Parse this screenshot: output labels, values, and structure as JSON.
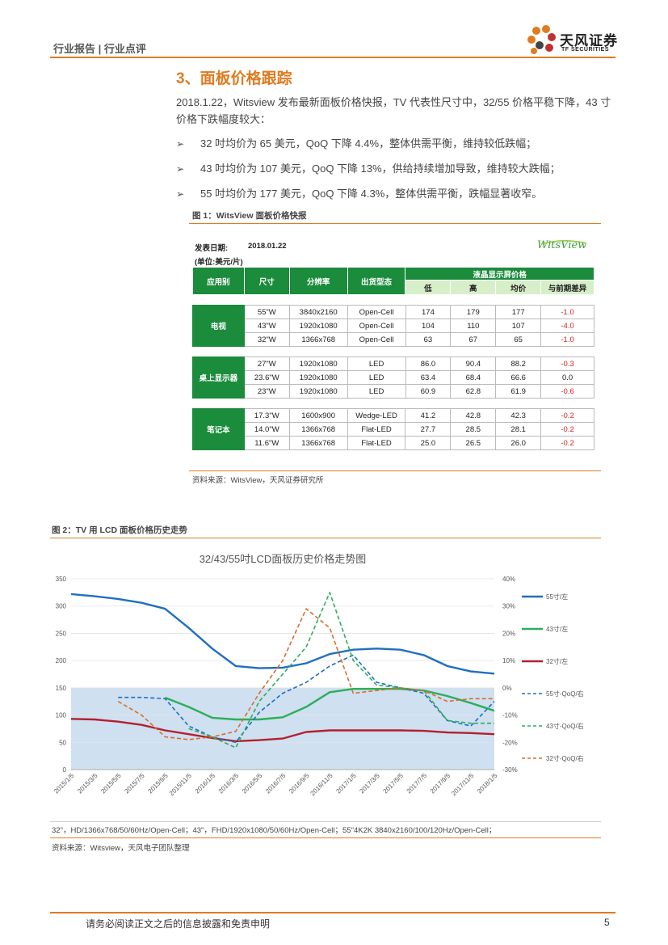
{
  "header": {
    "left": "行业报告 | 行业点评",
    "logo_cn": "天风证券",
    "logo_en": "TF SECURITIES"
  },
  "section_title": "3、面板价格跟踪",
  "intro": "2018.1.22，Witsview 发布最新面板价格快报，TV 代表性尺寸中，32/55 价格平稳下降，43 寸价格下跌幅度较大：",
  "bullets": [
    "32 吋均价为 65 美元，QoQ 下降 4.4%，整体供需平衡，维持较低跌幅；",
    "43 吋均价为 107 美元，QoQ 下降 13%，供给持续增加导致，维持较大跌幅；",
    "55 吋均价为 177 美元，QoQ 下降 4.3%，整体供需平衡，跌幅显著收窄。"
  ],
  "fig1": {
    "caption": "图 1：WitsView 面板价格快报",
    "date_label": "发表日期:",
    "date_value": "2018.01.22",
    "unit": "(单位:美元/片)",
    "brand": "WitsView",
    "headers": [
      "应用别",
      "尺寸",
      "分辨率",
      "出货型态",
      "液晶显示屏价格"
    ],
    "subheaders": [
      "低",
      "高",
      "均价",
      "与前期差异"
    ],
    "groups": [
      {
        "name": "电视",
        "rows": [
          [
            "55\"W",
            "3840x2160",
            "Open-Cell",
            "174",
            "179",
            "177",
            "-1.0"
          ],
          [
            "43\"W",
            "1920x1080",
            "Open-Cell",
            "104",
            "110",
            "107",
            "-4.0"
          ],
          [
            "32\"W",
            "1366x768",
            "Open-Cell",
            "63",
            "67",
            "65",
            "-1.0"
          ]
        ]
      },
      {
        "name": "桌上显示器",
        "rows": [
          [
            "27\"W",
            "1920x1080",
            "LED",
            "86.0",
            "90.4",
            "88.2",
            "-0.3"
          ],
          [
            "23.6\"W",
            "1920x1080",
            "LED",
            "63.4",
            "68.4",
            "66.6",
            "0.0"
          ],
          [
            "23\"W",
            "1920x1080",
            "LED",
            "60.9",
            "62.8",
            "61.9",
            "-0.6"
          ]
        ]
      },
      {
        "name": "笔记本",
        "rows": [
          [
            "17.3\"W",
            "1600x900",
            "Wedge-LED",
            "41.2",
            "42.8",
            "42.3",
            "-0.2"
          ],
          [
            "14.0\"W",
            "1366x768",
            "Flat-LED",
            "27.7",
            "28.5",
            "28.1",
            "-0.2"
          ],
          [
            "11.6\"W",
            "1366x768",
            "Flat-LED",
            "25.0",
            "26.5",
            "26.0",
            "-0.2"
          ]
        ]
      }
    ],
    "source": "资料来源：WitsView，天风证券研究所"
  },
  "fig2": {
    "caption": "图 2：TV 用 LCD 面板价格历史走势",
    "note": "32\"，HD/1366x768/50/60Hz/Open-Cell；43\"，FHD/1920x1080/50/60Hz/Open-Cell；55\"4K2K   3840x2160/100/120Hz/Open-Cell；",
    "source": "资料来源：Witsview，天风电子团队整理"
  },
  "chart_data": {
    "type": "line",
    "title": "32/43/55吋LCD面板历史价格走势图",
    "x": [
      "2015/1/5",
      "2015/3/5",
      "2015/5/5",
      "2015/7/5",
      "2015/9/5",
      "2015/11/5",
      "2016/1/5",
      "2016/3/5",
      "2016/5/5",
      "2016/7/5",
      "2016/9/5",
      "2016/11/5",
      "2017/1/5",
      "2017/3/5",
      "2017/5/5",
      "2017/7/5",
      "2017/9/5",
      "2017/11/5",
      "2018/1/5"
    ],
    "ylim_left": [
      0,
      350
    ],
    "yticks_left": [
      "0",
      "50",
      "100",
      "150",
      "200",
      "250",
      "300",
      "350"
    ],
    "ylim_right": [
      -30,
      40
    ],
    "yticks_right": [
      "-30%",
      "-20%",
      "-10%",
      "0%",
      "10%",
      "20%",
      "30%",
      "40%"
    ],
    "highlight_band": [
      0,
      150
    ],
    "series": [
      {
        "name": "55寸/左",
        "axis": "left",
        "color": "#1f6fc1",
        "dash": false,
        "values": [
          322,
          318,
          313,
          306,
          295,
          260,
          222,
          190,
          186,
          187,
          195,
          212,
          220,
          222,
          220,
          210,
          190,
          180,
          176
        ]
      },
      {
        "name": "43寸/左",
        "axis": "left",
        "color": "#2cae5a",
        "dash": false,
        "values": [
          null,
          null,
          null,
          null,
          132,
          115,
          95,
          92,
          92,
          96,
          115,
          142,
          148,
          148,
          148,
          145,
          135,
          122,
          108
        ]
      },
      {
        "name": "32寸/左",
        "axis": "left",
        "color": "#b3202e",
        "dash": false,
        "values": [
          93,
          92,
          88,
          82,
          72,
          65,
          58,
          52,
          54,
          57,
          69,
          72,
          72,
          72,
          72,
          71,
          68,
          67,
          65
        ]
      },
      {
        "name": "55寸-QoQ/右",
        "axis": "right",
        "color": "#1f6fc1",
        "dash": true,
        "values": [
          null,
          null,
          -3.5,
          -3.5,
          -4,
          -14,
          -18,
          -20,
          -9,
          -2,
          2,
          8,
          12,
          2,
          0,
          -2,
          -12,
          -14,
          -5
        ]
      },
      {
        "name": "43寸-QoQ/右",
        "axis": "right",
        "color": "#2cae5a",
        "dash": true,
        "values": [
          null,
          null,
          null,
          null,
          null,
          -15,
          -18,
          -22,
          -5,
          5,
          15,
          35,
          10,
          1,
          0,
          -1,
          -12,
          -13,
          -13
        ]
      },
      {
        "name": "32寸-QoQ/右",
        "axis": "right",
        "color": "#d86d2a",
        "dash": true,
        "values": [
          null,
          null,
          -5,
          -10,
          -18,
          -19,
          -18,
          -16,
          -2,
          10,
          29,
          22,
          -2,
          -1,
          0,
          -1,
          -5,
          -4,
          -4
        ]
      }
    ]
  },
  "footer": {
    "disclaimer": "请务必阅读正文之后的信息披露和免责申明",
    "page": "5"
  }
}
